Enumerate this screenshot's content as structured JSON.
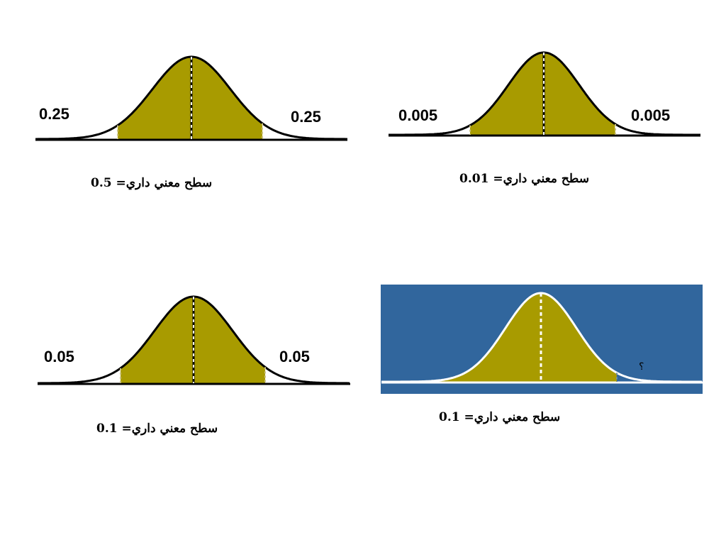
{
  "colors": {
    "fill": "#a89b00",
    "line": "#000000",
    "blue_background": "#31669d",
    "white_line": "#ffffff"
  },
  "panels": [
    {
      "id": "top-left",
      "left_tail": "0.25",
      "right_tail": "0.25",
      "caption": "سطح معني داري= 0.5"
    },
    {
      "id": "top-right",
      "left_tail": "0.005",
      "right_tail": "0.005",
      "caption": "سطح معني داري= 0.01"
    },
    {
      "id": "bottom-left",
      "left_tail": "0.05",
      "right_tail": "0.05",
      "caption": "سطح معني داري= 0.1"
    },
    {
      "id": "bottom-right",
      "right_tail": "؟",
      "caption": "سطح معني داري= 0.1"
    }
  ]
}
